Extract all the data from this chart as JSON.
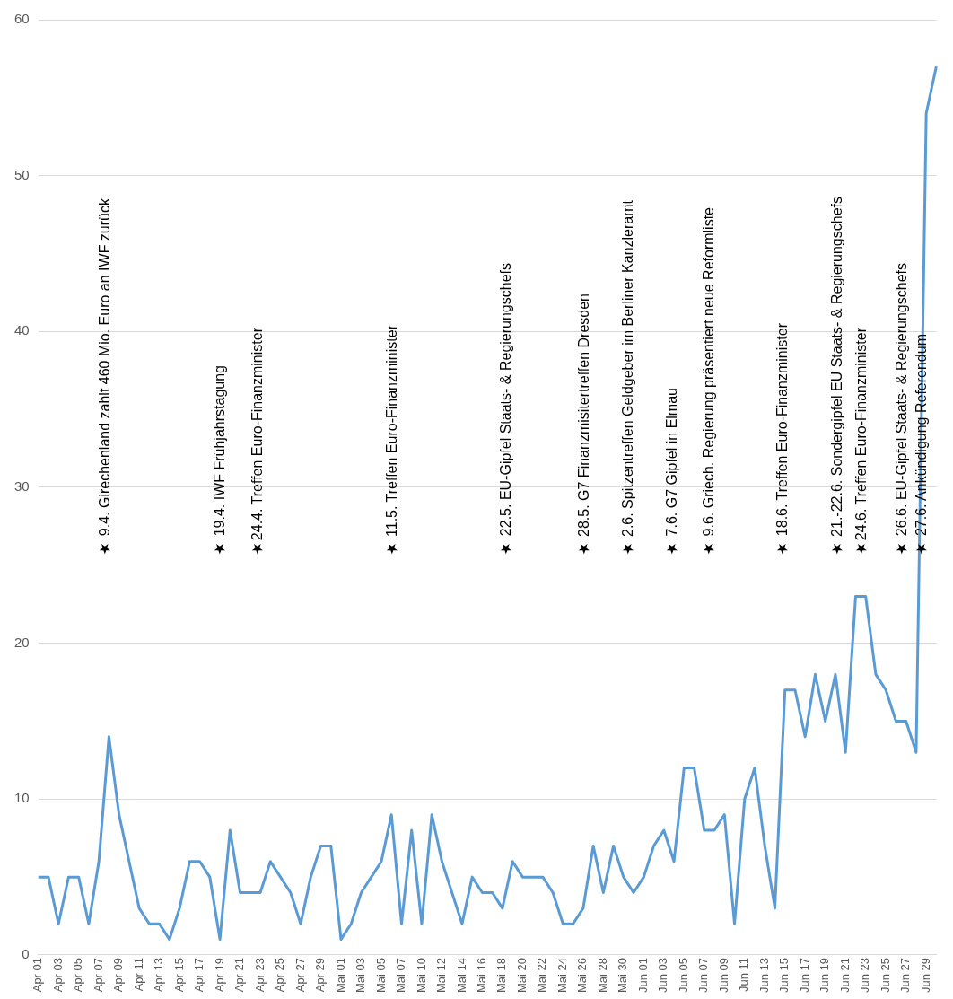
{
  "chart_data": {
    "type": "line",
    "categories": [
      "Apr 01",
      null,
      "Apr 03",
      null,
      "Apr 05",
      null,
      "Apr 07",
      null,
      "Apr 09",
      null,
      "Apr 11",
      null,
      "Apr 13",
      null,
      "Apr 15",
      null,
      "Apr 17",
      null,
      "Apr 19",
      null,
      "Apr 21",
      null,
      "Apr 23",
      null,
      "Apr 25",
      null,
      "Apr 27",
      null,
      "Apr 29",
      null,
      "Mai 01",
      null,
      "Mai 03",
      null,
      "Mai 05",
      null,
      "Mai 07",
      null,
      "Mai 10",
      null,
      "Mai 12",
      null,
      "Mai 14",
      null,
      "Mai 16",
      null,
      "Mai 18",
      null,
      "Mai 20",
      null,
      "Mai 22",
      null,
      "Mai 24",
      null,
      "Mai 26",
      null,
      "Mai 28",
      null,
      "Mai 30",
      null,
      "Jun 01",
      null,
      "Jun 03",
      null,
      "Jun 05",
      null,
      "Jun 07",
      null,
      "Jun 09",
      null,
      "Jun 11",
      null,
      "Jun 13",
      null,
      "Jun 15",
      null,
      "Jun 17",
      null,
      "Jun 19",
      null,
      "Jun 21",
      null,
      "Jun 23",
      null,
      "Jun 25",
      null,
      "Jun 27",
      null,
      "Jun 29",
      null
    ],
    "series": [
      {
        "color": "#5b9bd5",
        "values": [
          5,
          5,
          2,
          5,
          5,
          2,
          6,
          14,
          9,
          6,
          3,
          2,
          2,
          1,
          3,
          6,
          6,
          5,
          1,
          8,
          4,
          4,
          4,
          6,
          5,
          4,
          2,
          5,
          7,
          7,
          1,
          2,
          4,
          5,
          6,
          9,
          2,
          8,
          2,
          9,
          6,
          4,
          2,
          5,
          4,
          4,
          3,
          6,
          5,
          5,
          5,
          4,
          2,
          2,
          3,
          7,
          4,
          7,
          5,
          4,
          5,
          7,
          8,
          6,
          12,
          12,
          8,
          8,
          9,
          2,
          10,
          12,
          7,
          3,
          17,
          17,
          14,
          18,
          15,
          18,
          13,
          23,
          23,
          18,
          17,
          15,
          15,
          13,
          54,
          57
        ]
      }
    ],
    "ylim": [
      0,
      60
    ],
    "yticks": [
      0,
      10,
      20,
      30,
      40,
      50,
      60
    ],
    "grid": "y",
    "marker": "none",
    "line_style": "solid",
    "annotations": [
      "★ 9.4. Girechenland zahlt 460 Mio. Euro an IWF zurück",
      "★ 19.4. IWF Frühjahrstagung",
      "★24.4. Treffen Euro-Finanzminister",
      "★ 11.5. Treffen Euro-Finanzminister",
      "★ 22.5. EU-Gipfel Staats- & Regierungschefs",
      "★ 28.5. G7 Finanzmisitertreffen Dresden",
      "★ 2.6. Spitzentreffen Geldgeber im Berliner Kanzleramt",
      "★ 7.6. G7 Gipfel in Elmau",
      "★ 9.6. Griech. Regierung präsentiert neue Reformliste",
      "★ 18.6. Treffen Euro-Finanzminister",
      "★ 21.-22.6. Sondergipfel EU Staats- & Regierungschefs",
      "★24.6. Treffen Euro-Finanzminister",
      "★ 26.6. EU-Gipfel Staats- & Regierungschefs",
      "★ 27.6. Ankündigung Referendum"
    ]
  }
}
